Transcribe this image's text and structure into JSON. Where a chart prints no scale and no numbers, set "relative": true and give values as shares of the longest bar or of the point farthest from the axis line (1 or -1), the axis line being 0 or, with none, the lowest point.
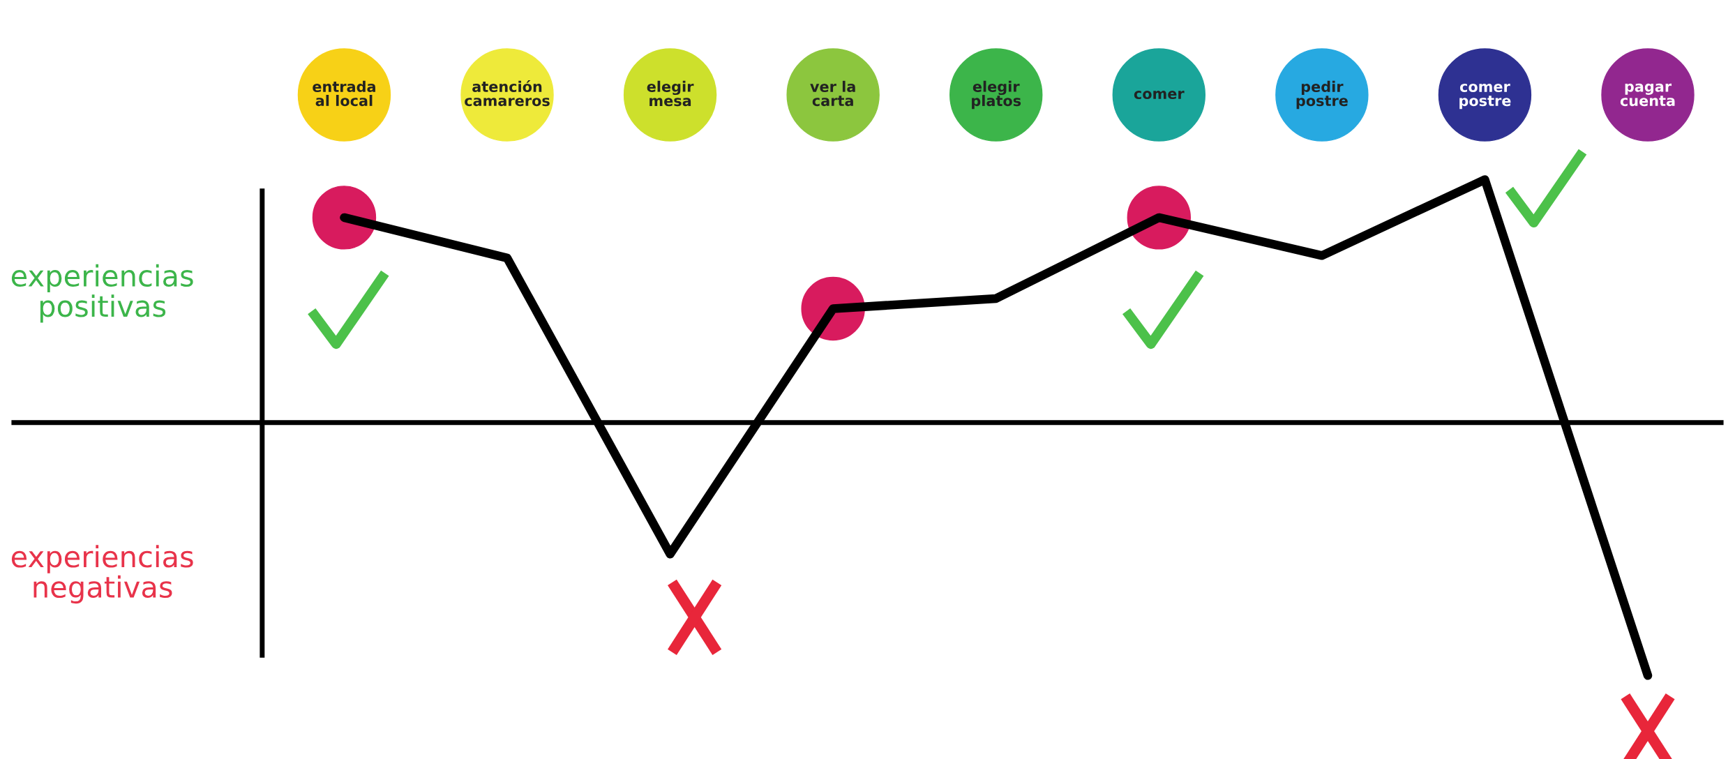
{
  "chart_data": {
    "type": "line",
    "relative": true,
    "categories": [
      "entrada\nal local",
      "atención\ncamareros",
      "elegir\nmesa",
      "ver la\ncarta",
      "elegir\nplatos",
      "comer",
      "pedir\npostre",
      "comer\npostre",
      "pagar\ncuenta"
    ],
    "series": [
      {
        "color": "#000000",
        "marker": "none",
        "values": [
          0.81,
          0.65,
          -0.52,
          0.45,
          0.49,
          0.81,
          0.66,
          0.96,
          -1
        ]
      },
      {
        "type": "scatter",
        "color": "#d81b5e",
        "marker": "circle",
        "values": [
          0.81,
          null,
          null,
          0.45,
          null,
          0.81,
          null,
          null,
          null
        ]
      }
    ],
    "annotations": [
      "experiencias\npositivas",
      "experiencias\nnegativas"
    ],
    "legend": false,
    "tick_labels": "x",
    "line_style": "solid"
  }
}
